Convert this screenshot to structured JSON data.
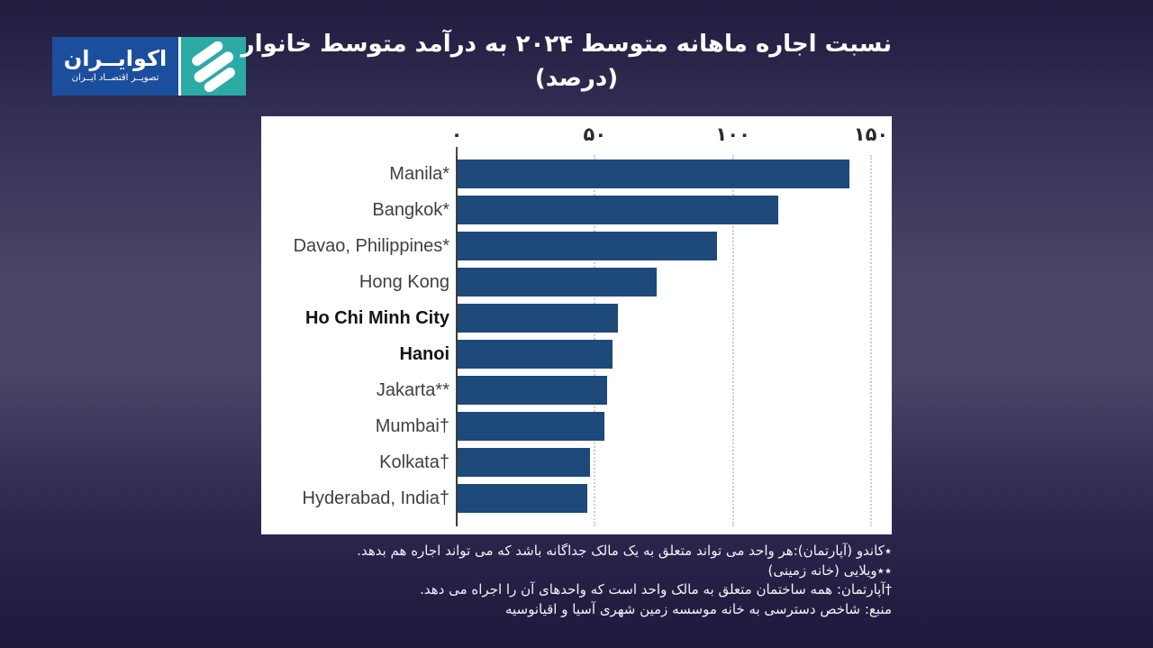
{
  "logo": {
    "title": "اکوایــران",
    "subtitle": "تصویــر اقتصــاد ایــران",
    "icon": "ecoiran-emblem-icon",
    "text_box_color": "#1b4f9e",
    "icon_box_color": "#2baaa6"
  },
  "header": {
    "title_line1": "نسبت اجاره ماهانه متوسط ۲۰۲۴ به درآمد متوسط خانوار",
    "title_line2": "(درصد)"
  },
  "chart_data": {
    "type": "bar",
    "orientation": "horizontal",
    "title": "نسبت اجاره ماهانه متوسط ۲۰۲۴ به درآمد متوسط خانوار (درصد)",
    "categories": [
      "Manila*",
      "Bangkok*",
      "Davao, Philippines*",
      "Hong Kong",
      "Ho Chi Minh City",
      "Hanoi",
      "Jakarta**",
      "Mumbai†",
      "Kolkata†",
      "Hyderabad, India†"
    ],
    "values": [
      142,
      116,
      94,
      72,
      58,
      56,
      54,
      53,
      48,
      47
    ],
    "bold_categories": [
      "Ho Chi Minh City",
      "Hanoi"
    ],
    "xlim": [
      0,
      150
    ],
    "x_ticks": [
      {
        "value": 0,
        "label": "۰"
      },
      {
        "value": 50,
        "label": "۵۰"
      },
      {
        "value": 100,
        "label": "۱۰۰"
      },
      {
        "value": 150,
        "label": "۱۵۰"
      }
    ],
    "xlabel": "",
    "ylabel": "",
    "bar_color": "#1d4a7a",
    "grid": "vertical-dotted",
    "tick_position": "top",
    "plot_background": "#ffffff"
  },
  "footnotes": {
    "lines": [
      "٭کاندو (آپارتمان):هر واحد می تواند متعلق به یک مالک جداگانه باشد که می تواند اجاره هم بدهد.",
      "٭٭ویلایی (خانه زمینی)",
      "†آپارتمان: همه ساختمان متعلق به مالک واحد است که واحدهای آن را اجراه می دهد.",
      "منبع: شاخص دسترسی به خانه موسسه زمین شهری آسیا و اقیانوسیه"
    ]
  }
}
